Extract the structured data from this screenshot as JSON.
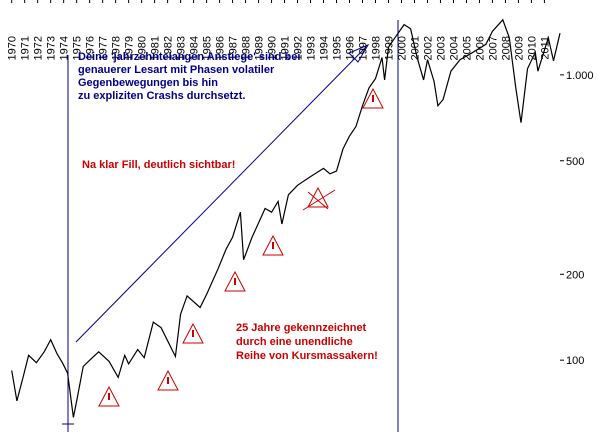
{
  "chart_data": {
    "type": "line",
    "x": [
      1970.0,
      1970.4,
      1970.9,
      1971.3,
      1971.9,
      1972.5,
      1973.0,
      1973.5,
      1973.9,
      1974.3,
      1974.75,
      1975.0,
      1975.5,
      1976.0,
      1976.7,
      1977.5,
      1978.2,
      1978.7,
      1979.0,
      1979.7,
      1980.2,
      1980.9,
      1981.5,
      1982.6,
      1983.0,
      1983.5,
      1984.5,
      1985.0,
      1985.9,
      1986.5,
      1987.0,
      1987.6,
      1987.85,
      1988.5,
      1989.5,
      1990.0,
      1990.5,
      1990.8,
      1991.3,
      1992.0,
      1993.0,
      1994.0,
      1994.5,
      1995.0,
      1995.5,
      1996.0,
      1996.5,
      1997.0,
      1997.5,
      1998.0,
      1998.5,
      1998.7,
      1999.0,
      1999.5,
      2000.2,
      2000.7,
      2001.2,
      2001.7,
      2002.0,
      2002.5,
      2002.8,
      2003.2,
      2003.8,
      2004.5,
      2005.5,
      2006.5,
      2007.0,
      2007.8,
      2008.3,
      2008.8,
      2009.2,
      2009.7,
      2010.3,
      2010.5,
      2011.3,
      2011.7,
      2012.2
    ],
    "series": [
      {
        "color": "#000000",
        "values": [
          92,
          72,
          88,
          104,
          98,
          107,
          118,
          105,
          98,
          90,
          63,
          72,
          95,
          100,
          107,
          99,
          87,
          104,
          97,
          109,
          102,
          136,
          130,
          103,
          145,
          168,
          153,
          170,
          210,
          245,
          270,
          330,
          225,
          270,
          340,
          330,
          360,
          300,
          380,
          410,
          440,
          470,
          450,
          460,
          550,
          610,
          660,
          780,
          900,
          970,
          1150,
          960,
          1250,
          1350,
          1500,
          1450,
          1150,
          960,
          1130,
          950,
          780,
          820,
          1030,
          1130,
          1200,
          1280,
          1420,
          1560,
          1350,
          900,
          680,
          1050,
          1200,
          1030,
          1350,
          1120,
          1400
        ]
      }
    ],
    "xlim": [
      1969.1,
      2012.2
    ],
    "xticks": [
      1970,
      1971,
      1972,
      1973,
      1974,
      1975,
      1976,
      1977,
      1978,
      1979,
      1980,
      1981,
      1982,
      1983,
      1984,
      1985,
      1986,
      1987,
      1988,
      1989,
      1990,
      1991,
      1992,
      1993,
      1994,
      1995,
      1996,
      1997,
      1998,
      1999,
      2000,
      2001,
      2002,
      2003,
      2004,
      2005,
      2006,
      2007,
      2008,
      2009,
      2010,
      2011
    ],
    "ylim": [
      56,
      1830
    ],
    "log_y": true,
    "yticks": [
      100,
      200,
      500,
      {
        "value": 1000,
        "label": "1.000"
      }
    ],
    "annotations": [
      {
        "color": "#00008b",
        "lines": [
          "Deine 'jahrzehntelangen Anstiege' sind bei",
          "genauerer Lesart mit Phasen volatiler",
          "Gegenbewegungen bis hin",
          "zu expliziten Crashs durchsetzt."
        ]
      },
      {
        "color": "#cc0000",
        "lines": [
          "Na klar Fill, deutlich sichtbar!"
        ]
      },
      {
        "color": "#cc0000",
        "lines": [
          "25 Jahre gekennzeichnet",
          "durch eine unendliche",
          "Reihe von Kursmassakern!"
        ]
      }
    ]
  }
}
